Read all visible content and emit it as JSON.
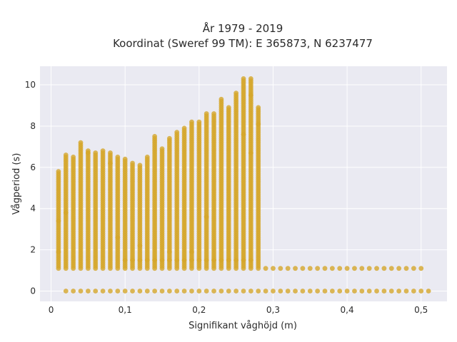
{
  "chart_data": {
    "type": "scatter",
    "title_line1": "År 1979 - 2019",
    "title_line2": "Koordinat (Sweref 99 TM): E 365873, N 6237477",
    "xlabel": "Signifikant våghöjd (m)",
    "ylabel": "Vågperiod (s)",
    "xlim": [
      -0.015,
      0.535
    ],
    "ylim": [
      -0.5,
      10.9
    ],
    "xticks": [
      0,
      0.1,
      0.2,
      0.3,
      0.4,
      0.5
    ],
    "xtick_labels": [
      "0",
      "0,1",
      "0,2",
      "0,3",
      "0,4",
      "0,5"
    ],
    "yticks": [
      0,
      2,
      4,
      6,
      8,
      10
    ],
    "ytick_labels": [
      "0",
      "2",
      "4",
      "6",
      "8",
      "10"
    ],
    "grid": true,
    "legend": "none",
    "colors": {
      "points": "#D4A62A",
      "plot_bg": "#EAEAF2",
      "grid": "#ffffff"
    },
    "columns": [
      {
        "x": 0.01,
        "ymin": 1.1,
        "ymax": 5.8
      },
      {
        "x": 0.02,
        "ymin": 1.1,
        "ymax": 6.6
      },
      {
        "x": 0.03,
        "ymin": 1.1,
        "ymax": 6.5
      },
      {
        "x": 0.04,
        "ymin": 1.1,
        "ymax": 7.2
      },
      {
        "x": 0.05,
        "ymin": 1.1,
        "ymax": 6.8
      },
      {
        "x": 0.06,
        "ymin": 1.1,
        "ymax": 6.7
      },
      {
        "x": 0.07,
        "ymin": 1.1,
        "ymax": 6.8
      },
      {
        "x": 0.08,
        "ymin": 1.1,
        "ymax": 6.7
      },
      {
        "x": 0.09,
        "ymin": 1.1,
        "ymax": 6.5
      },
      {
        "x": 0.1,
        "ymin": 1.1,
        "ymax": 6.4
      },
      {
        "x": 0.11,
        "ymin": 1.1,
        "ymax": 6.2
      },
      {
        "x": 0.12,
        "ymin": 1.1,
        "ymax": 6.1
      },
      {
        "x": 0.13,
        "ymin": 1.1,
        "ymax": 6.5
      },
      {
        "x": 0.14,
        "ymin": 1.1,
        "ymax": 7.5
      },
      {
        "x": 0.15,
        "ymin": 1.1,
        "ymax": 6.9
      },
      {
        "x": 0.16,
        "ymin": 1.1,
        "ymax": 7.4
      },
      {
        "x": 0.17,
        "ymin": 1.1,
        "ymax": 7.7
      },
      {
        "x": 0.18,
        "ymin": 1.1,
        "ymax": 7.9
      },
      {
        "x": 0.19,
        "ymin": 1.1,
        "ymax": 8.2
      },
      {
        "x": 0.2,
        "ymin": 1.1,
        "ymax": 8.2
      },
      {
        "x": 0.21,
        "ymin": 1.1,
        "ymax": 8.6
      },
      {
        "x": 0.22,
        "ymin": 1.1,
        "ymax": 8.6
      },
      {
        "x": 0.23,
        "ymin": 1.1,
        "ymax": 9.3
      },
      {
        "x": 0.24,
        "ymin": 1.1,
        "ymax": 8.9
      },
      {
        "x": 0.25,
        "ymin": 1.1,
        "ymax": 9.6
      },
      {
        "x": 0.26,
        "ymin": 1.1,
        "ymax": 10.3
      },
      {
        "x": 0.27,
        "ymin": 1.1,
        "ymax": 10.3
      },
      {
        "x": 0.28,
        "ymin": 1.1,
        "ymax": 8.9
      }
    ],
    "tail_columns": {
      "x_start": 0.29,
      "x_end": 0.5,
      "step": 0.01,
      "values": [
        1.1
      ]
    },
    "zero_row": {
      "x_start": 0.02,
      "x_end": 0.51,
      "step": 0.01,
      "y": 0
    },
    "band_row": {
      "x_start": 0.1,
      "x_end": 0.27,
      "step": 0.01,
      "y": 1.5
    },
    "outliers": [
      {
        "x": 0.01,
        "y": 1.9
      },
      {
        "x": 0.01,
        "y": 3.4
      },
      {
        "x": 0.02,
        "y": 3.8
      },
      {
        "x": 0.05,
        "y": 6.7
      },
      {
        "x": 0.08,
        "y": 6.2
      },
      {
        "x": 0.09,
        "y": 2.6
      },
      {
        "x": 0.16,
        "y": 1.9
      },
      {
        "x": 0.19,
        "y": 1.9
      },
      {
        "x": 0.21,
        "y": 3.6
      },
      {
        "x": 0.27,
        "y": 6.7
      },
      {
        "x": 0.28,
        "y": 8.1
      },
      {
        "x": 0.26,
        "y": 7.6
      },
      {
        "x": 0.27,
        "y": 9.5
      },
      {
        "x": 0.12,
        "y": 2.2
      }
    ]
  }
}
